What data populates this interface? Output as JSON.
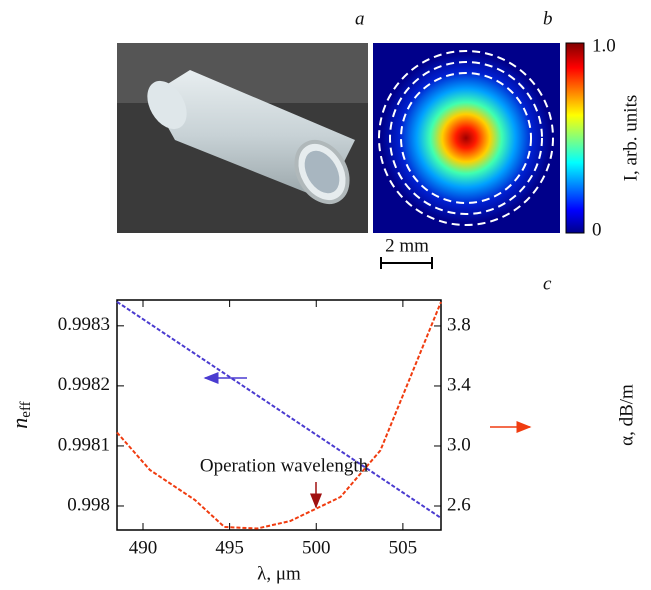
{
  "panel_labels": [
    "a",
    "b",
    "c"
  ],
  "scale_bar": "2 mm",
  "chart_data": [
    {
      "type": "heatmap",
      "colorbar_label": "I, arb. units",
      "clim": [
        0,
        1
      ],
      "cticks": [
        0,
        {
          "value": 1,
          "label": "1.0"
        }
      ]
    },
    {
      "type": "line",
      "xlabel": "λ, μm",
      "ylabel": {
        "main": "n",
        "sub": "eff"
      },
      "y2label": "α, dB/m",
      "annotation": "Operation wavelength",
      "xlim": [
        488.5,
        507.2
      ],
      "xticks": [
        490,
        495,
        500,
        505
      ],
      "ylim": [
        0.99796,
        0.998343
      ],
      "yticks": [
        0.998,
        0.9981,
        0.9982,
        0.9983
      ],
      "y2lim": [
        2.44,
        3.973
      ],
      "y2ticks": [
        2.6,
        {
          "value": 3,
          "label": "3.0"
        },
        3.4,
        3.8
      ],
      "series": [
        {
          "color": "#4a3bd0",
          "x": [
            488.5,
            507.2
          ],
          "values": [
            0.99834,
            0.99798
          ]
        },
        {
          "color": "#f03c10",
          "axis": "y2",
          "x": [
            488.5,
            490.4,
            493,
            494.7,
            496.6,
            498.5,
            501.4,
            503.7,
            505.4,
            507.2
          ],
          "values": [
            3.09,
            2.84,
            2.64,
            2.46,
            2.45,
            2.5,
            2.66,
            2.97,
            3.45,
            3.96
          ]
        }
      ]
    }
  ]
}
